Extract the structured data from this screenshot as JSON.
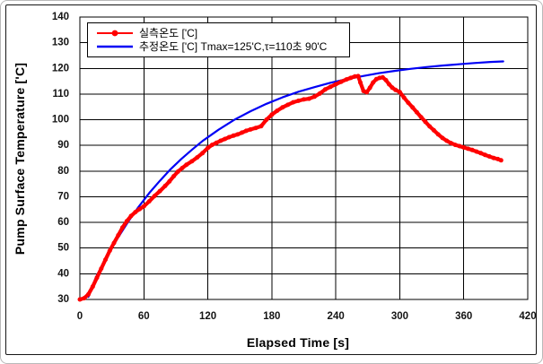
{
  "window": {
    "background": "#ffffff",
    "outer_border_color": "#161616",
    "grid_color": "#000000",
    "text_color": "#141414"
  },
  "chart_data": {
    "type": "line",
    "title": "",
    "xlabel": "Elapsed Time [s]",
    "ylabel": "Pump Surface Temperature ['C]",
    "xlim": [
      0,
      420
    ],
    "ylim": [
      30,
      140
    ],
    "x_ticks": [
      0,
      60,
      120,
      180,
      240,
      300,
      360,
      420
    ],
    "y_ticks": [
      30,
      40,
      50,
      60,
      70,
      80,
      90,
      100,
      110,
      120,
      130,
      140
    ],
    "grid": true,
    "legend_position": "top-left",
    "series": [
      {
        "name": "실측온도 ['C]",
        "color": "#ff0000",
        "marker": "circle",
        "line_width": 4.2,
        "x": [
          0,
          4,
          8,
          12,
          16,
          20,
          24,
          28,
          32,
          36,
          40,
          44,
          48,
          52,
          56,
          60,
          65,
          70,
          75,
          80,
          84,
          88,
          92,
          96,
          100,
          105,
          110,
          115,
          120,
          124,
          128,
          132,
          136,
          140,
          144,
          148,
          152,
          156,
          160,
          165,
          170,
          175,
          180,
          185,
          190,
          195,
          200,
          205,
          210,
          215,
          220,
          225,
          230,
          235,
          240,
          245,
          250,
          254,
          258,
          261,
          263,
          266,
          269,
          272,
          275,
          278,
          281,
          284,
          287,
          290,
          293,
          296,
          300,
          304,
          308,
          312,
          316,
          320,
          324,
          328,
          332,
          336,
          340,
          344,
          348,
          352,
          356,
          360,
          364,
          368,
          372,
          376,
          380,
          384,
          388,
          392,
          395
        ],
        "y": [
          30,
          30.5,
          32,
          35,
          38.5,
          42,
          45.5,
          49,
          52,
          55,
          58,
          60.5,
          62.5,
          64,
          65.2,
          66.3,
          68.2,
          70.3,
          72.2,
          74.2,
          76,
          78,
          79.8,
          81.2,
          82.5,
          83.8,
          85.3,
          87,
          89,
          90.2,
          91,
          91.8,
          92.5,
          93.2,
          93.8,
          94.3,
          95,
          95.7,
          96.2,
          96.8,
          97.5,
          100,
          102,
          103.5,
          104.8,
          105.8,
          106.8,
          107.4,
          107.9,
          108.2,
          109,
          110.2,
          111.8,
          112.8,
          113.8,
          114.8,
          115.7,
          116.3,
          116.9,
          117,
          114.5,
          111.2,
          110.7,
          112.5,
          114.5,
          115.8,
          116.3,
          116.5,
          115.4,
          113.8,
          112.5,
          111.6,
          110.8,
          108.6,
          106.6,
          104.8,
          102.9,
          101,
          99.2,
          97.4,
          95.9,
          94.3,
          92.9,
          91.8,
          90.9,
          90.2,
          89.7,
          89.2,
          88.7,
          88.2,
          87.6,
          87,
          86.3,
          85.7,
          85.1,
          84.7,
          84.2
        ]
      },
      {
        "name": "추정온도 ['C] Tmax=125'C,τ=110초 90'C",
        "color": "#0000f5",
        "marker": "none",
        "line_width": 2.2,
        "x": [
          8,
          15,
          25,
          35,
          45,
          55,
          65,
          75,
          85,
          95,
          105,
          115,
          130,
          145,
          160,
          175,
          190,
          205,
          220,
          235,
          250,
          265,
          280,
          295,
          310,
          325,
          340,
          355,
          370,
          385,
          397
        ],
        "y": [
          31,
          38.6,
          46.5,
          53.6,
          60.1,
          66,
          71.4,
          76.2,
          80.7,
          84.7,
          88.3,
          91.7,
          96.1,
          100,
          103.3,
          106.2,
          108.7,
          110.9,
          112.7,
          114.4,
          115.8,
          117,
          118.1,
          119,
          119.8,
          120.5,
          121.1,
          121.6,
          122.1,
          122.5,
          122.7
        ]
      }
    ]
  }
}
